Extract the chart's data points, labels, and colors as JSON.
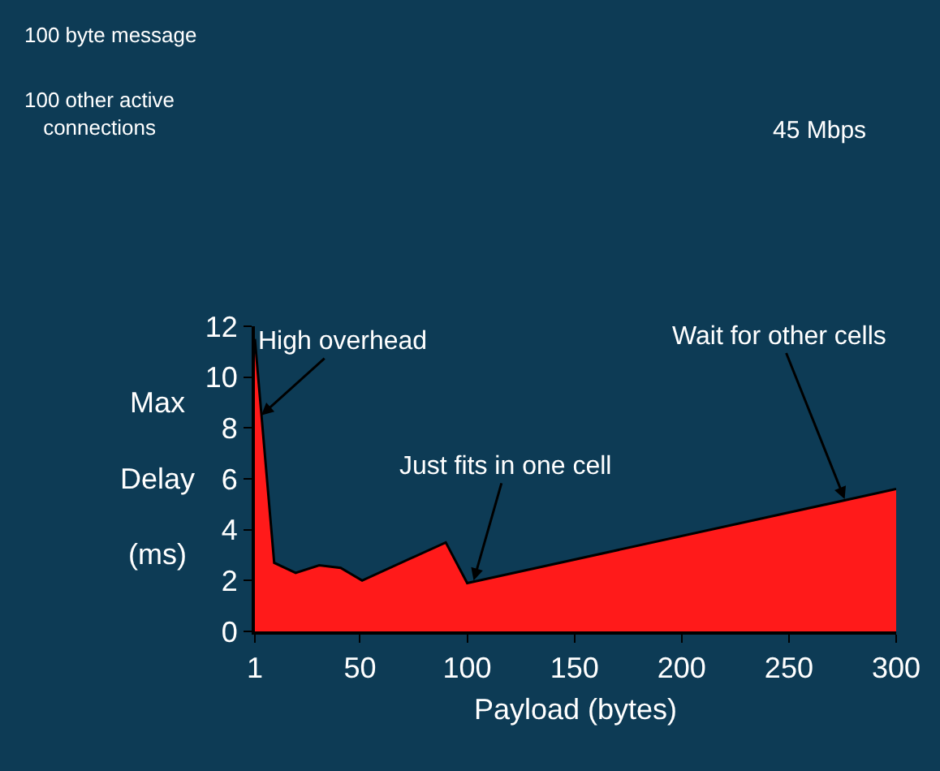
{
  "chart_data": {
    "type": "area",
    "xlabel": "Payload (bytes)",
    "ylabel": "Max Delay (ms)",
    "x": [
      1,
      10,
      20,
      31,
      41,
      51,
      90,
      100,
      300
    ],
    "series": [
      {
        "color": "#ff1a1a",
        "values": [
          11.5,
          2.7,
          2.3,
          2.6,
          2.5,
          2.0,
          3.5,
          1.9,
          5.6
        ]
      }
    ],
    "xlim": [
      1,
      300
    ],
    "xticks": [
      1,
      50,
      100,
      150,
      200,
      250,
      300
    ],
    "ylim": [
      0,
      12
    ],
    "yticks": [
      0,
      2,
      4,
      6,
      8,
      10,
      12
    ],
    "grid": false,
    "legend": false,
    "annotations": [
      {
        "text": "High overhead",
        "x": 4,
        "y": 8.5
      },
      {
        "text": "Just fits in one cell",
        "x": 103,
        "y": 2.0
      },
      {
        "text": "Wait for other cells",
        "x": 276,
        "y": 5.2
      },
      "100 byte message",
      "100 other active connections",
      "45 Mbps"
    ]
  }
}
